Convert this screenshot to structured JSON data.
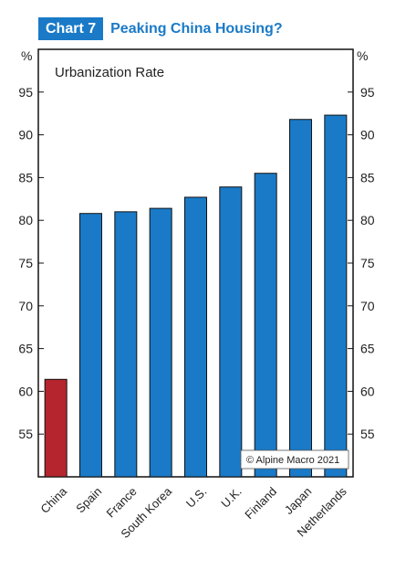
{
  "header": {
    "badge": "Chart 7",
    "title": "Peaking China Housing?"
  },
  "chart_data": {
    "type": "bar",
    "title": "Peaking China Housing?",
    "subtitle": "Urbanization Rate",
    "unit_left": "%",
    "unit_right": "%",
    "categories": [
      "China",
      "Spain",
      "France",
      "South Korea",
      "U.S.",
      "U.K.",
      "Finland",
      "Japan",
      "Netherlands"
    ],
    "values": [
      61.4,
      80.8,
      81.0,
      81.4,
      82.7,
      83.9,
      85.5,
      91.8,
      92.3
    ],
    "ylim": [
      50,
      100
    ],
    "yticks": [
      55,
      60,
      65,
      70,
      75,
      80,
      85,
      90,
      95
    ],
    "grid": false,
    "colors": {
      "highlight": "#b5252d",
      "default": "#1a7ac7"
    },
    "annotation": "© Alpine Macro 2021"
  }
}
